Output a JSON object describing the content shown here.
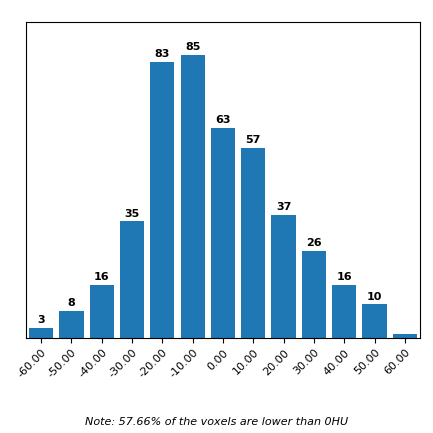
{
  "chart_data": {
    "type": "bar",
    "categories": [
      "-60.00",
      "-50.00",
      "-40.00",
      "-30.00",
      "-20.00",
      "-10.00",
      "0.00",
      "10.00",
      "20.00",
      "30.00",
      "40.00",
      "50.00",
      "60.00"
    ],
    "values": [
      3,
      8,
      16,
      35,
      83,
      85,
      63,
      57,
      37,
      26,
      16,
      10,
      1
    ],
    "value_labels": [
      "3",
      "8",
      "16",
      "35",
      "83",
      "85",
      "63",
      "57",
      "37",
      "26",
      "16",
      "10",
      null
    ],
    "data_labels": true,
    "ylim": [
      0,
      95
    ],
    "tick_labels": "x",
    "annotation": "Note: 57.66% of the voxels are lower than 0HU"
  }
}
